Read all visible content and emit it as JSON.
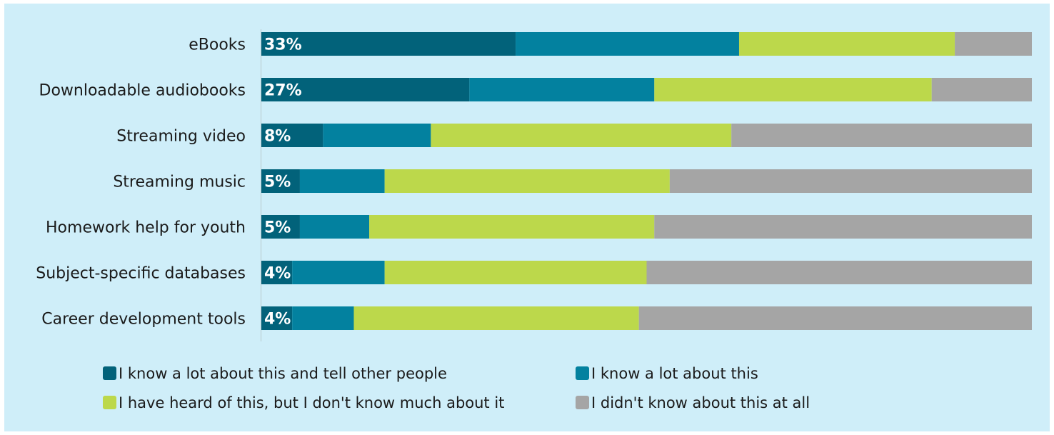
{
  "chart_data": {
    "type": "bar",
    "orientation": "horizontal",
    "stacked": true,
    "normalized": true,
    "categories": [
      "eBooks",
      "Downloadable audiobooks",
      "Streaming video",
      "Streaming music",
      "Homework help for youth",
      "Subject-specific databases",
      "Career development tools"
    ],
    "series": [
      {
        "name": "I know a lot about this and tell other people",
        "color": "#02627a",
        "values": [
          33,
          27,
          8,
          5,
          5,
          4,
          4
        ]
      },
      {
        "name": "I know a lot about this",
        "color": "#03819f",
        "values": [
          29,
          24,
          14,
          11,
          9,
          12,
          8
        ]
      },
      {
        "name": "I have heard of this, but I don't know much about it",
        "color": "#bcd84b",
        "values": [
          28,
          36,
          39,
          37,
          37,
          34,
          37
        ]
      },
      {
        "name": "I didn't know about this at all",
        "color": "#a5a5a5",
        "values": [
          10,
          13,
          39,
          47,
          49,
          50,
          51
        ]
      }
    ],
    "data_labels": [
      "33%",
      "27%",
      "8%",
      "5%",
      "5%",
      "4%",
      "4%"
    ],
    "xlim": [
      0,
      100
    ],
    "grid": false,
    "legend_position": "bottom",
    "background_color": "#cfeef9"
  }
}
